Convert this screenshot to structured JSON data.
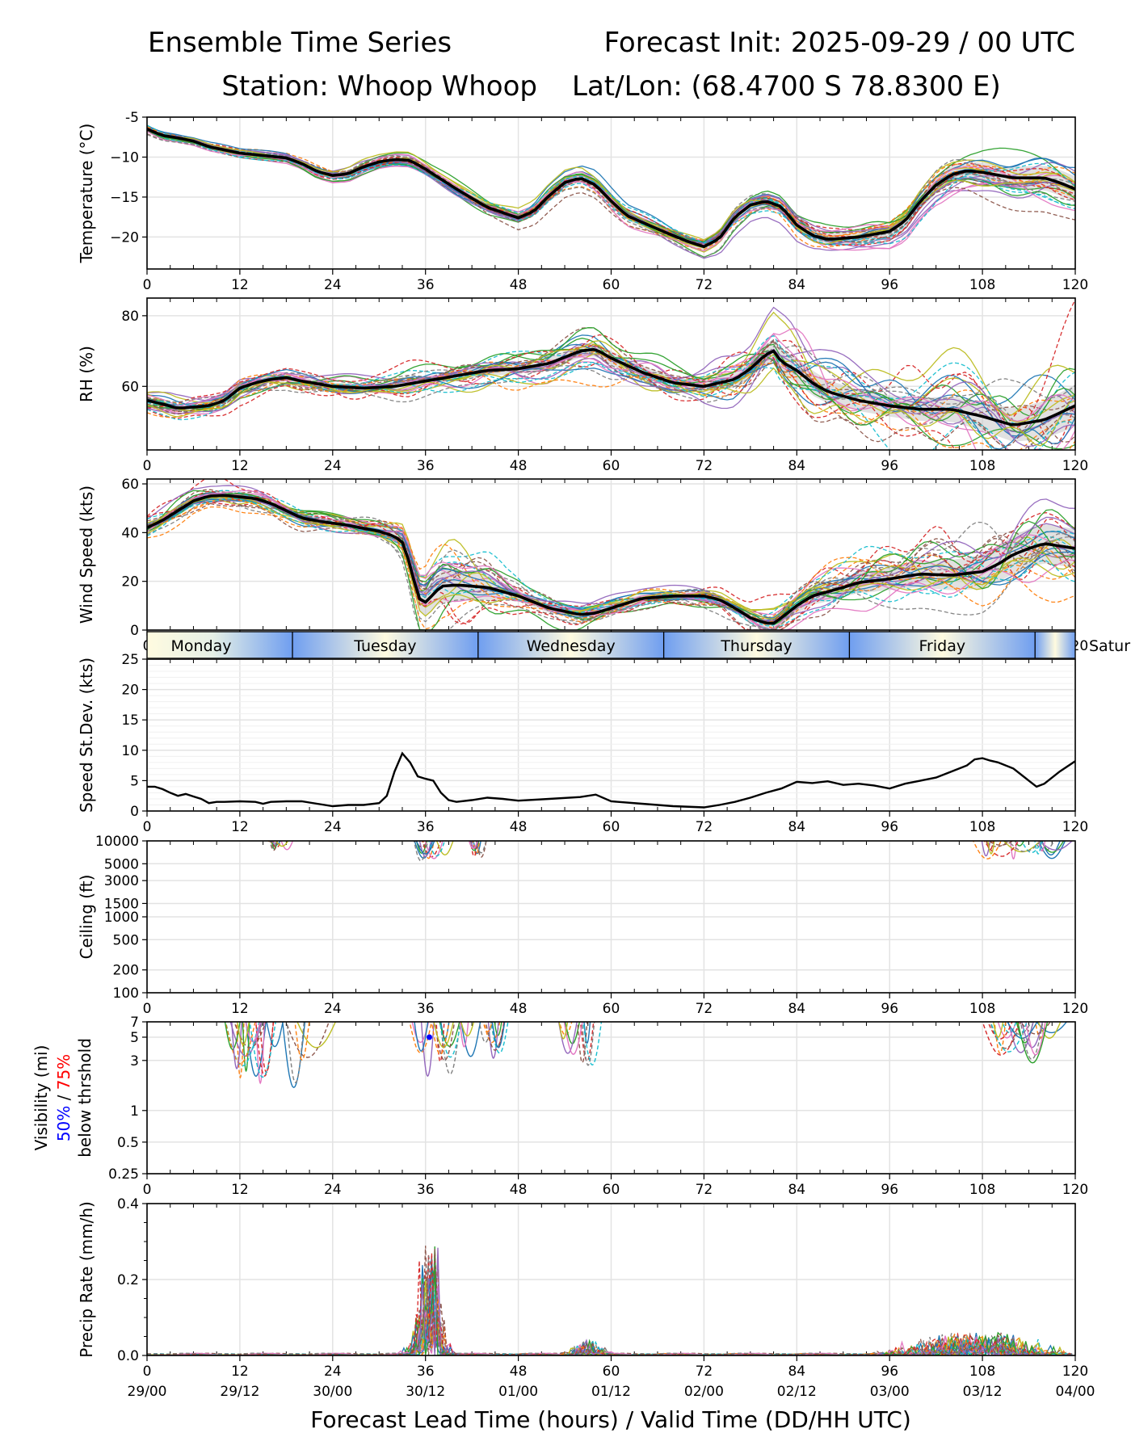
{
  "header": {
    "title_left": "Ensemble Time Series",
    "title_right": "Forecast Init: 2025-09-29 / 00 UTC",
    "station": "Station: Whoop Whoop",
    "latlon": "Lat/Lon: (68.4700 S 78.8300 E)"
  },
  "xaxis": {
    "range": [
      0,
      120
    ],
    "ticks": [
      0,
      12,
      24,
      36,
      48,
      60,
      72,
      84,
      96,
      108,
      120
    ],
    "tick_labels": [
      "0",
      "12",
      "24",
      "36",
      "48",
      "60",
      "72",
      "84",
      "96",
      "108",
      "120"
    ],
    "valid_labels": [
      "29/00",
      "29/12",
      "30/00",
      "30/12",
      "01/00",
      "01/12",
      "02/00",
      "02/12",
      "03/00",
      "03/12",
      "04/00"
    ],
    "label": "Forecast Lead Time (hours) / Valid Time (DD/HH UTC)"
  },
  "day_band": {
    "days": [
      "Monday",
      "Tuesday",
      "Wednesday",
      "Thursday",
      "Friday",
      "Satur"
    ],
    "separators_hours": [
      18.8,
      42.8,
      66.8,
      90.8,
      114.8
    ]
  },
  "colors": {
    "mean": "#000000",
    "spread": "#c8c8c8",
    "grid": "#e3e3e3",
    "members": [
      "#1f77b4",
      "#ff7f0e",
      "#2ca02c",
      "#d62728",
      "#9467bd",
      "#8c564b",
      "#e377c2",
      "#7f7f7f",
      "#bcbd22",
      "#17becf"
    ],
    "vis50": "#0000ff",
    "vis75": "#ff0000"
  },
  "chart_data": [
    {
      "id": "temperature",
      "type": "line",
      "ylabel": "Temperature (°C)",
      "ylim": [
        -24,
        -5
      ],
      "yticks": [
        -5,
        -10,
        -15,
        -20
      ],
      "ytick_labels": [
        "-5",
        "−10",
        "−15",
        "−20"
      ],
      "mean": [
        [
          0,
          -6.5
        ],
        [
          2,
          -7.3
        ],
        [
          4,
          -7.6
        ],
        [
          6,
          -8.0
        ],
        [
          8,
          -8.7
        ],
        [
          12,
          -9.5
        ],
        [
          16,
          -9.9
        ],
        [
          18,
          -10.1
        ],
        [
          20,
          -10.8
        ],
        [
          22,
          -11.8
        ],
        [
          24,
          -12.3
        ],
        [
          26,
          -12.1
        ],
        [
          28,
          -11.2
        ],
        [
          30,
          -10.6
        ],
        [
          32,
          -10.3
        ],
        [
          34,
          -10.4
        ],
        [
          36,
          -11.5
        ],
        [
          40,
          -14.0
        ],
        [
          44,
          -16.3
        ],
        [
          48,
          -17.6
        ],
        [
          50,
          -16.8
        ],
        [
          52,
          -14.8
        ],
        [
          54,
          -13.2
        ],
        [
          56,
          -12.6
        ],
        [
          58,
          -13.5
        ],
        [
          60,
          -15.5
        ],
        [
          62,
          -17.3
        ],
        [
          66,
          -19.0
        ],
        [
          70,
          -20.6
        ],
        [
          72,
          -21.2
        ],
        [
          74,
          -20.2
        ],
        [
          76,
          -17.5
        ],
        [
          78,
          -16.0
        ],
        [
          80,
          -15.5
        ],
        [
          82,
          -16.2
        ],
        [
          84,
          -18.5
        ],
        [
          86,
          -19.8
        ],
        [
          88,
          -20.3
        ],
        [
          92,
          -20.0
        ],
        [
          96,
          -19.3
        ],
        [
          98,
          -18.0
        ],
        [
          100,
          -15.5
        ],
        [
          102,
          -13.5
        ],
        [
          104,
          -12.2
        ],
        [
          106,
          -11.7
        ],
        [
          108,
          -11.9
        ],
        [
          112,
          -12.6
        ],
        [
          116,
          -12.6
        ],
        [
          118,
          -13.2
        ],
        [
          120,
          -14.0
        ]
      ],
      "spread": [
        0.3,
        0.3,
        0.3,
        0.3,
        0.3,
        0.3,
        0.3,
        0.3,
        0.3,
        0.4,
        0.4,
        0.4,
        0.4,
        0.4,
        0.4,
        0.4,
        0.5,
        0.5,
        0.5,
        0.5,
        0.5,
        0.6,
        0.6,
        0.6,
        0.6,
        0.6,
        0.6,
        0.6,
        0.6,
        0.7,
        0.7,
        0.7,
        0.7,
        0.7,
        0.7,
        0.8,
        0.8,
        0.8,
        0.9,
        0.9,
        1.0,
        1.0,
        1.1,
        1.1,
        1.2,
        1.3,
        1.4,
        1.5,
        1.6,
        1.6
      ]
    },
    {
      "id": "rh",
      "type": "line",
      "ylabel": "RH (%)",
      "ylim": [
        42,
        85
      ],
      "yticks": [
        60,
        80
      ],
      "ytick_labels": [
        "60",
        "80"
      ],
      "mean": [
        [
          0,
          56
        ],
        [
          2,
          55
        ],
        [
          4,
          53.8
        ],
        [
          8,
          54.5
        ],
        [
          10,
          56
        ],
        [
          12,
          59.5
        ],
        [
          14,
          61
        ],
        [
          16,
          62
        ],
        [
          18,
          62.5
        ],
        [
          20,
          61.5
        ],
        [
          24,
          60
        ],
        [
          28,
          59.5
        ],
        [
          32,
          60
        ],
        [
          36,
          61.5
        ],
        [
          40,
          63
        ],
        [
          44,
          64.5
        ],
        [
          48,
          65
        ],
        [
          52,
          66.5
        ],
        [
          56,
          70
        ],
        [
          58,
          70.5
        ],
        [
          60,
          68
        ],
        [
          64,
          64
        ],
        [
          68,
          61
        ],
        [
          72,
          60
        ],
        [
          76,
          62
        ],
        [
          78,
          65
        ],
        [
          80,
          69
        ],
        [
          81,
          70
        ],
        [
          82,
          67
        ],
        [
          84,
          64.5
        ],
        [
          86,
          61
        ],
        [
          88,
          58.5
        ],
        [
          92,
          56
        ],
        [
          96,
          54.5
        ],
        [
          100,
          53.5
        ],
        [
          104,
          53.5
        ],
        [
          108,
          51.5
        ],
        [
          112,
          49
        ],
        [
          116,
          50.5
        ],
        [
          120,
          54.5
        ]
      ],
      "spread": [
        1,
        1,
        1,
        1,
        1,
        1,
        1,
        1,
        1,
        1,
        1,
        1.2,
        1.2,
        1.3,
        1.4,
        1.5,
        1.5,
        1.6,
        1.8,
        2,
        2,
        1.8,
        1.6,
        1.5,
        2,
        2.5,
        3,
        3.5,
        3.5,
        3.2,
        3,
        3,
        3.2,
        3.4,
        3.6,
        4,
        4.5,
        5,
        5.5,
        6
      ]
    },
    {
      "id": "wind",
      "type": "line",
      "ylabel": "Wind Speed (kts)",
      "ylim": [
        0,
        62
      ],
      "yticks": [
        0,
        20,
        40,
        60
      ],
      "ytick_labels": [
        "0",
        "20",
        "40",
        "60"
      ],
      "mean": [
        [
          0,
          42
        ],
        [
          2,
          45
        ],
        [
          4,
          49
        ],
        [
          6,
          53
        ],
        [
          8,
          55
        ],
        [
          10,
          55.3
        ],
        [
          14,
          54
        ],
        [
          16,
          52
        ],
        [
          18,
          49
        ],
        [
          20,
          46
        ],
        [
          22,
          44.8
        ],
        [
          26,
          43
        ],
        [
          30,
          40.5
        ],
        [
          32,
          38.5
        ],
        [
          33,
          36
        ],
        [
          34,
          27
        ],
        [
          35,
          14
        ],
        [
          35.7,
          10.5
        ],
        [
          36.5,
          13
        ],
        [
          38,
          18
        ],
        [
          40,
          18.5
        ],
        [
          44,
          17.5
        ],
        [
          48,
          14
        ],
        [
          52,
          9
        ],
        [
          56,
          6.3
        ],
        [
          58,
          7
        ],
        [
          62,
          11
        ],
        [
          64,
          13
        ],
        [
          68,
          14
        ],
        [
          72,
          14
        ],
        [
          74,
          12.5
        ],
        [
          76,
          9
        ],
        [
          78,
          5
        ],
        [
          80,
          2.8
        ],
        [
          81,
          2.8
        ],
        [
          82,
          5
        ],
        [
          84,
          10
        ],
        [
          86,
          14
        ],
        [
          90,
          17.5
        ],
        [
          92,
          19.5
        ],
        [
          96,
          21
        ],
        [
          100,
          23
        ],
        [
          104,
          22.5
        ],
        [
          108,
          24
        ],
        [
          110,
          27
        ],
        [
          112,
          31
        ],
        [
          114,
          33.5
        ],
        [
          116,
          35.5
        ],
        [
          120,
          33.5
        ]
      ],
      "spread": [
        2,
        2,
        2,
        2,
        2,
        2,
        1.8,
        1.8,
        1.8,
        1.8,
        1.8,
        1.8,
        2,
        2.5,
        4,
        6,
        7,
        6,
        5,
        3,
        2,
        2,
        2,
        2,
        2,
        2,
        1.8,
        1.8,
        1.6,
        1.6,
        1.6,
        2,
        2.5,
        3,
        3,
        3.5,
        4,
        4,
        4.5,
        4.5,
        5,
        5.5,
        6,
        6.5,
        7,
        7.5,
        8,
        8,
        8,
        8
      ]
    },
    {
      "id": "speed_stdev",
      "type": "line",
      "ylabel": "Speed St.Dev. (kts)",
      "ylim": [
        0,
        25
      ],
      "yticks": [
        0,
        5,
        10,
        15,
        20,
        25
      ],
      "ytick_labels": [
        "0",
        "5",
        "10",
        "15",
        "20",
        "25"
      ],
      "values": [
        [
          0,
          4
        ],
        [
          1,
          4
        ],
        [
          2,
          3.6
        ],
        [
          3,
          3
        ],
        [
          4,
          2.5
        ],
        [
          5,
          2.8
        ],
        [
          6,
          2.4
        ],
        [
          7,
          2
        ],
        [
          8,
          1.3
        ],
        [
          9,
          1.5
        ],
        [
          10,
          1.5
        ],
        [
          12,
          1.6
        ],
        [
          14,
          1.5
        ],
        [
          15,
          1.2
        ],
        [
          16,
          1.5
        ],
        [
          18,
          1.6
        ],
        [
          20,
          1.6
        ],
        [
          22,
          1.2
        ],
        [
          24,
          0.8
        ],
        [
          26,
          1
        ],
        [
          28,
          1
        ],
        [
          30,
          1.3
        ],
        [
          31,
          2.5
        ],
        [
          32,
          6.5
        ],
        [
          33,
          9.5
        ],
        [
          34,
          8
        ],
        [
          35,
          5.7
        ],
        [
          36,
          5.3
        ],
        [
          37,
          5
        ],
        [
          38,
          3
        ],
        [
          39,
          1.8
        ],
        [
          40,
          1.5
        ],
        [
          42,
          1.8
        ],
        [
          44,
          2.2
        ],
        [
          46,
          2
        ],
        [
          48,
          1.7
        ],
        [
          52,
          2
        ],
        [
          56,
          2.3
        ],
        [
          58,
          2.7
        ],
        [
          60,
          1.6
        ],
        [
          64,
          1.2
        ],
        [
          68,
          0.8
        ],
        [
          72,
          0.6
        ],
        [
          74,
          1
        ],
        [
          76,
          1.5
        ],
        [
          78,
          2.2
        ],
        [
          80,
          3
        ],
        [
          82,
          3.7
        ],
        [
          84,
          4.8
        ],
        [
          86,
          4.6
        ],
        [
          88,
          4.9
        ],
        [
          90,
          4.3
        ],
        [
          92,
          4.5
        ],
        [
          94,
          4.2
        ],
        [
          96,
          3.7
        ],
        [
          98,
          4.5
        ],
        [
          100,
          5
        ],
        [
          102,
          5.5
        ],
        [
          104,
          6.5
        ],
        [
          106,
          7.5
        ],
        [
          107,
          8.5
        ],
        [
          108,
          8.7
        ],
        [
          109,
          8.3
        ],
        [
          110,
          8
        ],
        [
          112,
          7
        ],
        [
          114,
          5
        ],
        [
          115,
          4
        ],
        [
          116,
          4.5
        ],
        [
          118,
          6.5
        ],
        [
          120,
          8.2
        ]
      ]
    },
    {
      "id": "ceiling",
      "type": "line",
      "ylabel": "Ceiling (ft)",
      "scale": "log",
      "ylim": [
        100,
        10000
      ],
      "yticks": [
        100,
        200,
        500,
        1000,
        1500,
        3000,
        5000,
        10000
      ],
      "ytick_labels": [
        "100",
        "200",
        "500",
        "1000",
        "1500",
        "3000",
        "5000",
        "10000"
      ],
      "dips": [
        [
          33.5,
          39,
          5200
        ],
        [
          41.5,
          44.5,
          6000
        ],
        [
          15,
          19,
          7500
        ],
        [
          106.5,
          120,
          5800
        ]
      ]
    },
    {
      "id": "visibility",
      "type": "line",
      "ylabel": "Visibility (mi)",
      "ylabel_50": "50%",
      "ylabel_sep": " / ",
      "ylabel_75": "75%",
      "ylabel_3": "below thrshold",
      "scale": "log",
      "ylim": [
        0.25,
        7
      ],
      "yticks": [
        0.25,
        0.5,
        1,
        3,
        5,
        7
      ],
      "ytick_labels": [
        "0.25",
        "0.5",
        "1",
        "3",
        "5",
        "7"
      ],
      "dips": [
        [
          10,
          25,
          1.5
        ],
        [
          33.5,
          40,
          2.0
        ],
        [
          40,
          47,
          3.0
        ],
        [
          53,
          58,
          2.6
        ],
        [
          107,
          120,
          2.8
        ]
      ],
      "vis50_point": [
        36.5,
        5.0
      ]
    },
    {
      "id": "precip",
      "type": "line",
      "ylabel": "Precip Rate (mm/h)",
      "ylim": [
        0,
        0.4
      ],
      "yticks": [
        0.0,
        0.2,
        0.4
      ],
      "ytick_labels": [
        "0.0",
        "0.2",
        "0.4"
      ],
      "events": [
        [
          36.5,
          0.31,
          1.3
        ],
        [
          107,
          0.06,
          6
        ],
        [
          57,
          0.04,
          1.5
        ]
      ]
    }
  ]
}
